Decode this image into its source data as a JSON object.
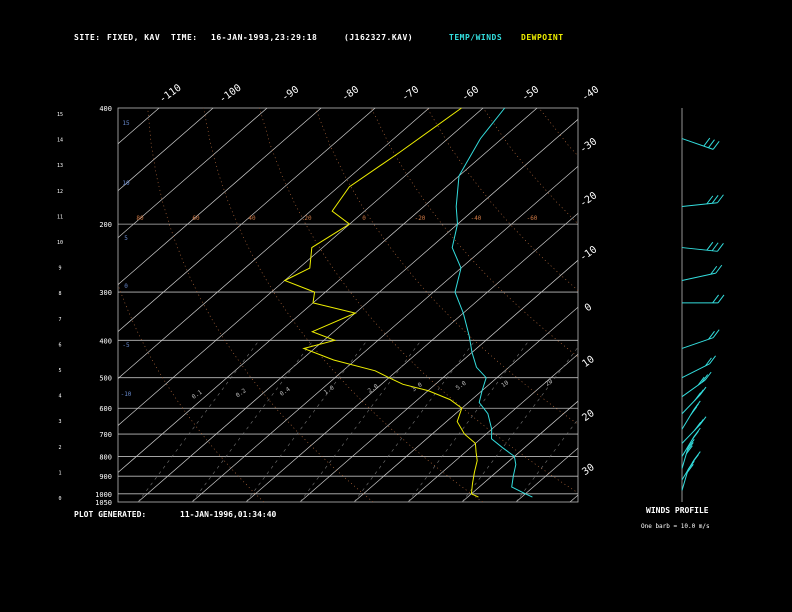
{
  "header": {
    "site_label": "SITE:",
    "site_value": "FIXED, KAV",
    "time_label": "TIME:",
    "time_value": "16-JAN-1993,23:29:18",
    "file_id": "(J162327.KAV)",
    "legend_temp": "TEMP/WINDS",
    "legend_dew": "DEWPOINT"
  },
  "footer": {
    "generated_label": "PLOT GENERATED:",
    "generated_value": "11-JAN-1996,01:34:40",
    "winds_title": "WINDS PROFILE",
    "winds_note": "One barb = 10.0 m/s"
  },
  "colors": {
    "temperature": "#33dddd",
    "dewpoint": "#eeee00",
    "isotherm": "#cccccc",
    "mixing_ratio": "#777777",
    "wet_adiabat": "#cc7744"
  },
  "chart_data": {
    "type": "line",
    "pressure_levels": [
      "400",
      "200",
      "300",
      "400",
      "500",
      "600",
      "700",
      "800",
      "900",
      "1000",
      "1050"
    ],
    "km_ticks": [
      "15",
      "14",
      "13",
      "12",
      "11",
      "10",
      "9",
      "8",
      "7",
      "6",
      "5",
      "4",
      "3",
      "2",
      "1",
      "0"
    ],
    "isotherm_top_labels": [
      "-110",
      "-100",
      "-90",
      "-80",
      "-70",
      "-60",
      "-50",
      "-40"
    ],
    "isotherm_right_labels": [
      "-30",
      "-20",
      "-10",
      "0",
      "10",
      "20",
      "30"
    ],
    "theta_labels": [
      "15",
      "10",
      "5",
      "0",
      "-5",
      "-10"
    ],
    "mixing_ratio_labels": [
      "0.1",
      "0.2",
      "0.4",
      "1.0",
      "2.0",
      "3.0",
      "5.0",
      "10",
      "20"
    ],
    "adiabat_labels": [
      "80",
      "60",
      "40",
      "20",
      "0",
      "-20",
      "-40",
      "-60"
    ],
    "series": [
      {
        "name": "TEMP/WINDS",
        "points": [
          [
            -76,
            100
          ],
          [
            -74,
            120
          ],
          [
            -70,
            150
          ],
          [
            -64,
            180
          ],
          [
            -60,
            200
          ],
          [
            -56,
            230
          ],
          [
            -50,
            260
          ],
          [
            -46,
            300
          ],
          [
            -40,
            340
          ],
          [
            -34,
            390
          ],
          [
            -30,
            430
          ],
          [
            -26,
            470
          ],
          [
            -22,
            500
          ],
          [
            -20,
            540
          ],
          [
            -18,
            580
          ],
          [
            -14,
            620
          ],
          [
            -10,
            680
          ],
          [
            -8,
            720
          ],
          [
            -4,
            760
          ],
          [
            0,
            800
          ],
          [
            2,
            840
          ],
          [
            4,
            900
          ],
          [
            6,
            960
          ],
          [
            10,
            1000
          ],
          [
            12,
            1020
          ]
        ]
      },
      {
        "name": "DEWPOINT",
        "points": [
          [
            -84,
            100
          ],
          [
            -86,
            130
          ],
          [
            -88,
            160
          ],
          [
            -86,
            185
          ],
          [
            -80,
            200
          ],
          [
            -82,
            230
          ],
          [
            -78,
            260
          ],
          [
            -80,
            280
          ],
          [
            -72,
            300
          ],
          [
            -70,
            320
          ],
          [
            -60,
            340
          ],
          [
            -64,
            380
          ],
          [
            -58,
            400
          ],
          [
            -62,
            420
          ],
          [
            -54,
            450
          ],
          [
            -44,
            480
          ],
          [
            -40,
            500
          ],
          [
            -36,
            520
          ],
          [
            -30,
            540
          ],
          [
            -24,
            570
          ],
          [
            -20,
            600
          ],
          [
            -18,
            650
          ],
          [
            -14,
            700
          ],
          [
            -10,
            740
          ],
          [
            -8,
            780
          ],
          [
            -6,
            820
          ],
          [
            -4,
            880
          ],
          [
            -2,
            940
          ],
          [
            0,
            1000
          ],
          [
            2,
            1020
          ]
        ]
      }
    ],
    "winds_profile": [
      {
        "p": 120,
        "dir": 300,
        "spd": 25
      },
      {
        "p": 180,
        "dir": 260,
        "spd": 30
      },
      {
        "p": 230,
        "dir": 280,
        "spd": 25
      },
      {
        "p": 280,
        "dir": 250,
        "spd": 20
      },
      {
        "p": 320,
        "dir": 270,
        "spd": 15
      },
      {
        "p": 420,
        "dir": 240,
        "spd": 20
      },
      {
        "p": 500,
        "dir": 230,
        "spd": 20
      },
      {
        "p": 560,
        "dir": 220,
        "spd": 25
      },
      {
        "p": 620,
        "dir": 210,
        "spd": 30
      },
      {
        "p": 680,
        "dir": 200,
        "spd": 30
      },
      {
        "p": 740,
        "dir": 210,
        "spd": 25
      },
      {
        "p": 800,
        "dir": 200,
        "spd": 20
      },
      {
        "p": 860,
        "dir": 190,
        "spd": 25
      },
      {
        "p": 920,
        "dir": 200,
        "spd": 20
      },
      {
        "p": 980,
        "dir": 190,
        "spd": 15
      }
    ],
    "grid": true
  }
}
